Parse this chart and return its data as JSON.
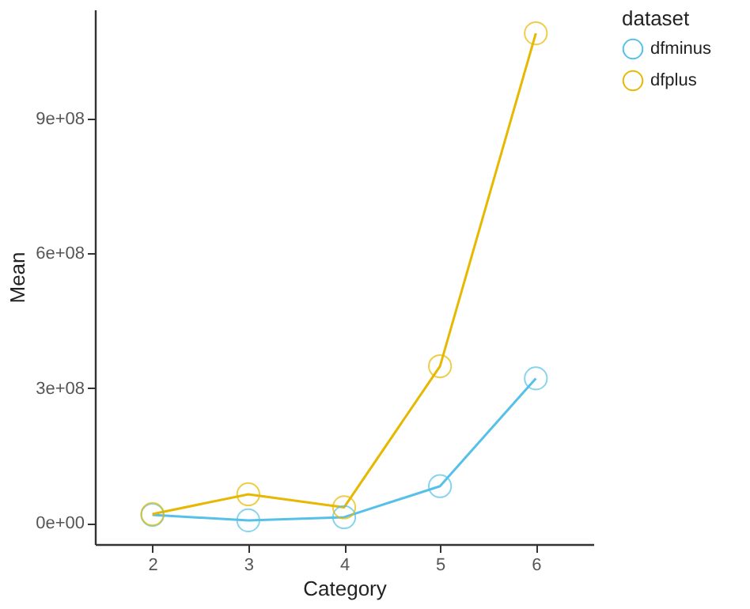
{
  "chart_data": {
    "type": "line",
    "xlabel": "Category",
    "ylabel": "Mean",
    "legend_title": "dataset",
    "x": [
      2,
      3,
      4,
      5,
      6
    ],
    "series": [
      {
        "name": "dfminus",
        "color": "#56c1e8",
        "values": [
          18000000,
          6000000,
          13000000,
          82000000,
          322000000
        ]
      },
      {
        "name": "dfplus",
        "color": "#e7b800",
        "values": [
          20000000,
          64000000,
          35000000,
          349000000,
          1090000000
        ]
      }
    ],
    "xlim": [
      1.4,
      6.6
    ],
    "xticks": [
      2,
      3,
      4,
      5,
      6
    ],
    "ylim": [
      -47000000,
      1143000000
    ],
    "yticks": [
      {
        "value": 0,
        "label": "0e+00"
      },
      {
        "value": 300000000,
        "label": "3e+08"
      },
      {
        "value": 600000000,
        "label": "6e+08"
      },
      {
        "value": 900000000,
        "label": "9e+08"
      }
    ],
    "grid": false,
    "legend": "right",
    "marker": "circle",
    "line_style": "solid"
  }
}
